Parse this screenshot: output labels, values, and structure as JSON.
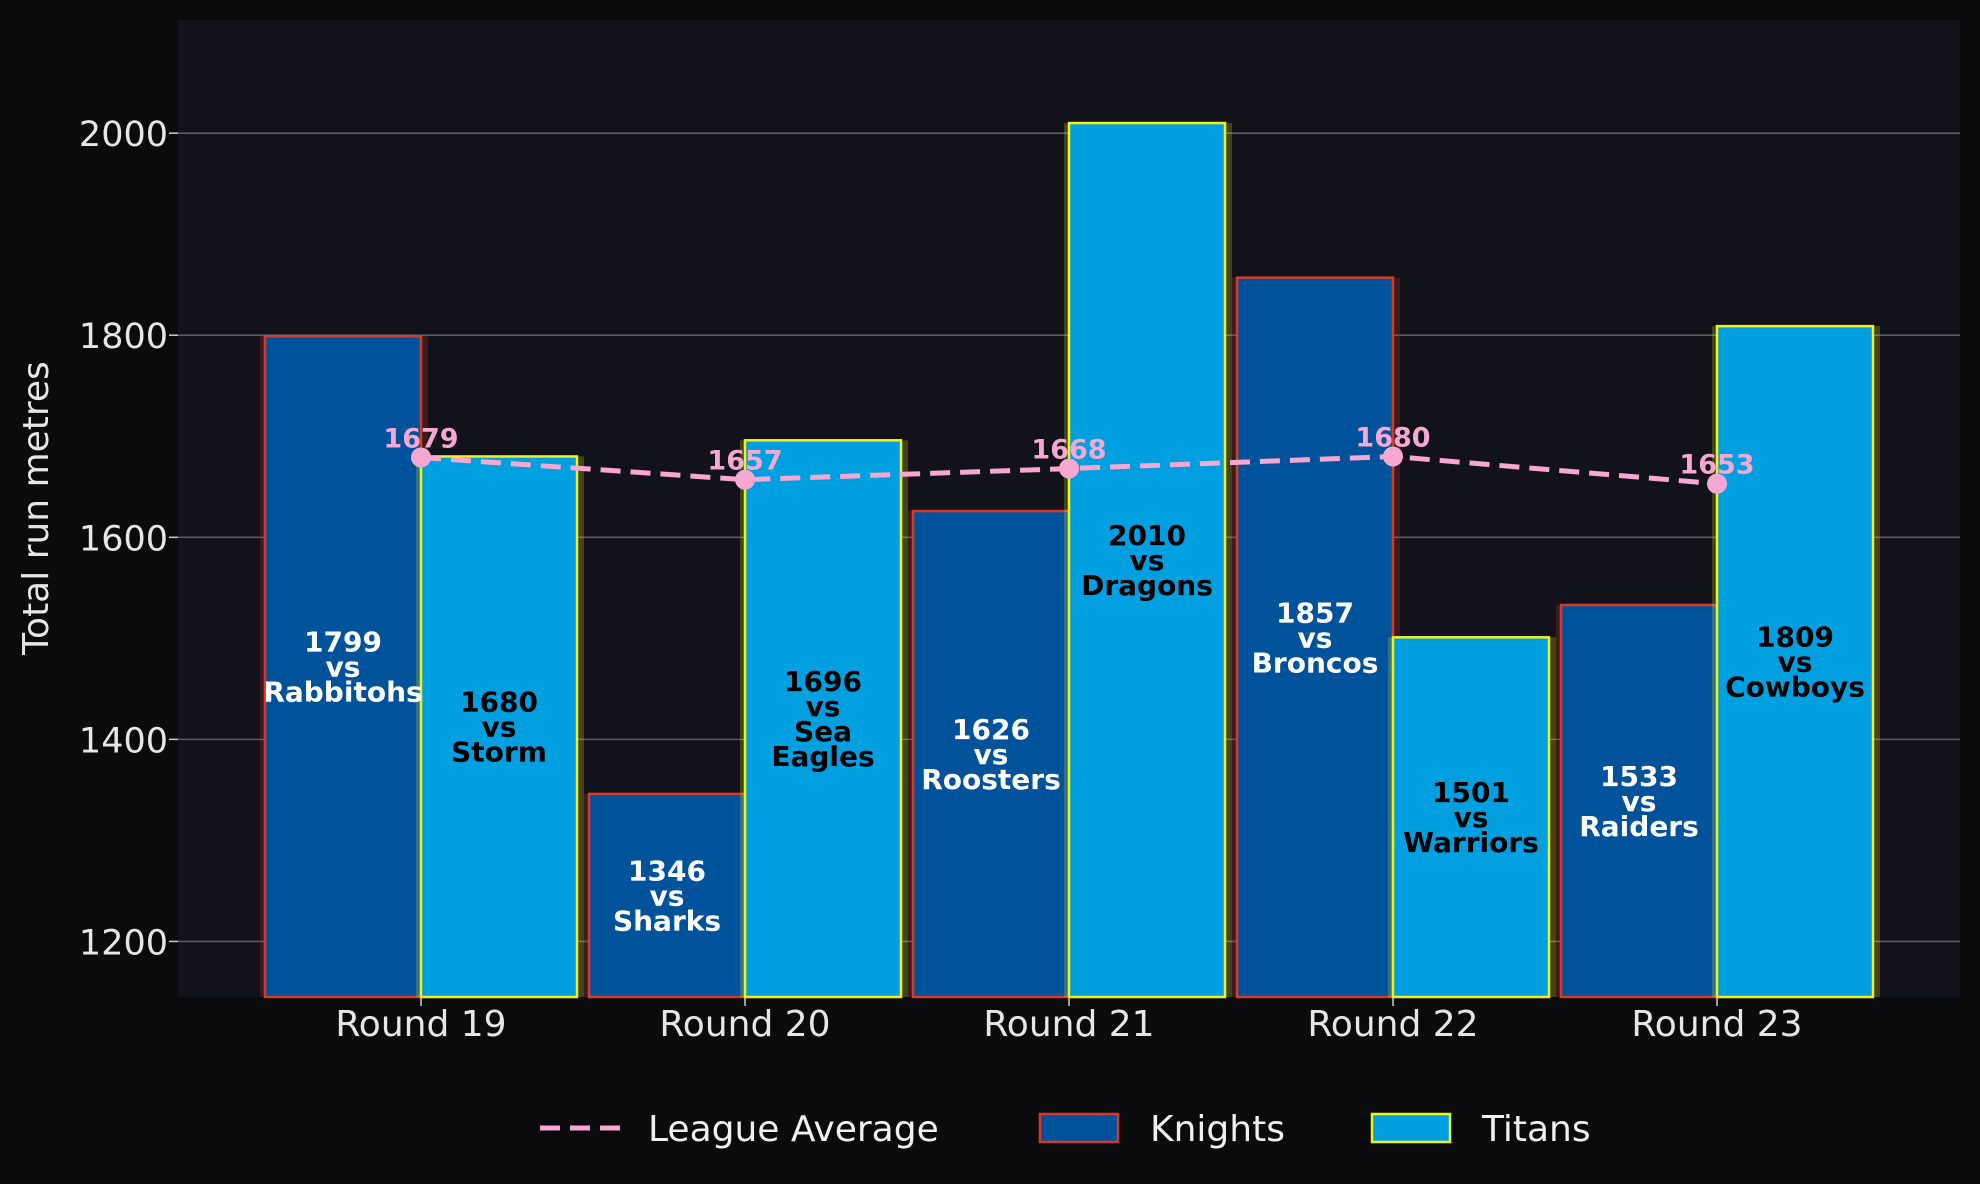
{
  "chart_data": {
    "type": "bar",
    "categories": [
      "Round 19",
      "Round 20",
      "Round 21",
      "Round 22",
      "Round 23"
    ],
    "ylabel": "Total run metres",
    "ylim": [
      1145,
      2112
    ],
    "yticks": [
      1200,
      1400,
      1600,
      1800,
      2000
    ],
    "grid": true,
    "legend_position": "bottom",
    "series": [
      {
        "name": "Knights",
        "values": [
          1799,
          1346,
          1626,
          1857,
          1533
        ],
        "labels": [
          [
            "1799",
            "vs",
            "Rabbitohs"
          ],
          [
            "1346",
            "vs",
            "Sharks"
          ],
          [
            "1626",
            "vs",
            "Roosters"
          ],
          [
            "1857",
            "vs",
            "Broncos"
          ],
          [
            "1533",
            "vs",
            "Raiders"
          ]
        ],
        "fill": "#00529b",
        "edge": "#d63a2a",
        "label_color": "#ffffff"
      },
      {
        "name": "Titans",
        "values": [
          1680,
          1696,
          2010,
          1501,
          1809
        ],
        "labels": [
          [
            "1680",
            "vs",
            "Storm"
          ],
          [
            "1696",
            "vs",
            "Sea",
            "Eagles"
          ],
          [
            "2010",
            "vs",
            "Dragons"
          ],
          [
            "1501",
            "vs",
            "Warriors"
          ],
          [
            "1809",
            "vs",
            "Cowboys"
          ]
        ],
        "fill": "#009fe0",
        "edge": "#f2f21a",
        "label_color": "#000000"
      }
    ],
    "average_line": {
      "name": "League Average",
      "values": [
        1679,
        1657,
        1668,
        1680,
        1653
      ],
      "color": "#f7a8d2"
    }
  }
}
